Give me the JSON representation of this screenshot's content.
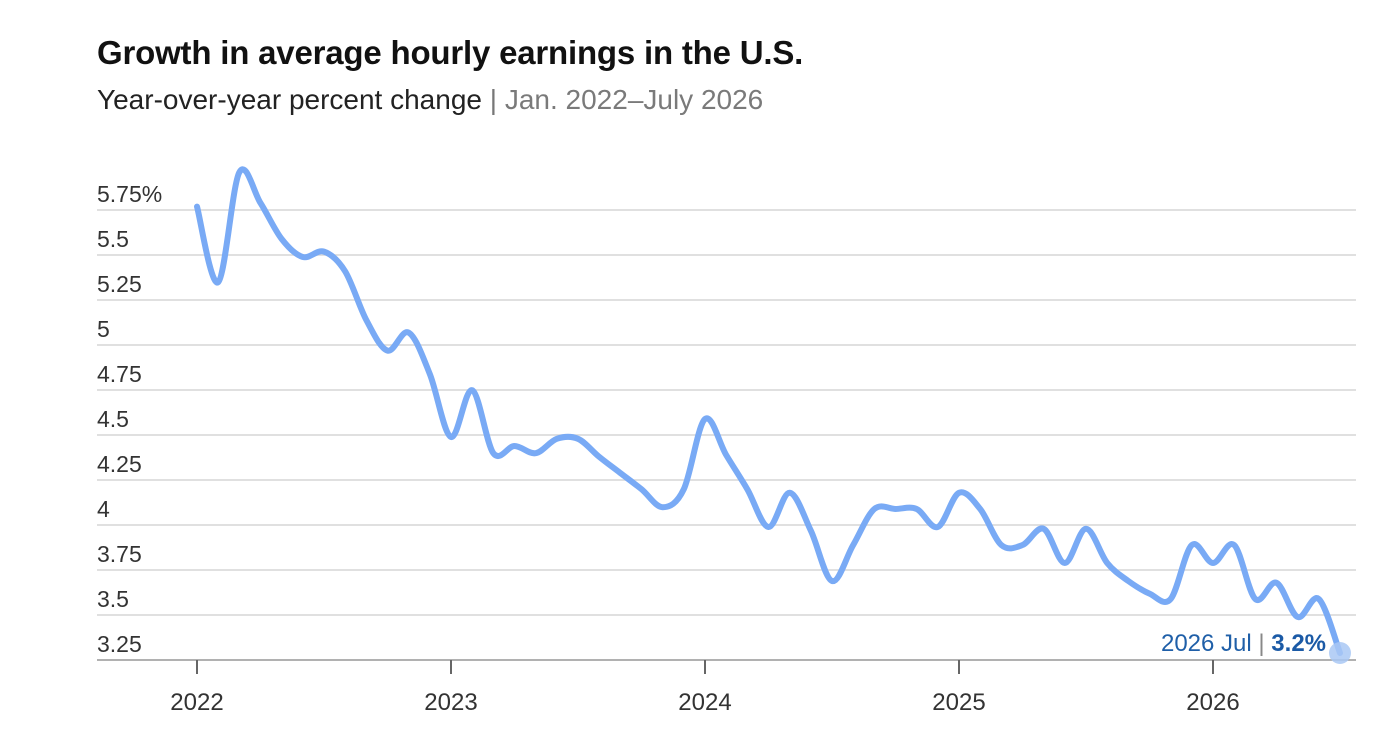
{
  "header": {
    "title": "Growth in average hourly earnings in the U.S.",
    "subtitle_main": "Year-over-year percent change",
    "subtitle_sep": "|",
    "subtitle_range": "Jan. 2022–July 2026"
  },
  "colors": {
    "line": "#79aaf5",
    "grid": "#d6d6d6",
    "axis": "#9e9e9e",
    "annotation": "#1f5fa8",
    "end_marker": "#a9c8f5"
  },
  "chart_data": {
    "type": "line",
    "title": "Growth in average hourly earnings in the U.S.",
    "subtitle": "Year-over-year percent change | Jan. 2022–July 2026",
    "xlabel": "",
    "ylabel": "",
    "y_tick_values": [
      3.25,
      3.5,
      3.75,
      4,
      4.25,
      4.5,
      4.75,
      5,
      5.25,
      5.5,
      5.75
    ],
    "y_tick_labels": [
      "3.25",
      "3.5",
      "3.75",
      "4",
      "4.25",
      "4.5",
      "4.75",
      "5",
      "5.25",
      "5.5",
      "5.75%"
    ],
    "x_tick_labels": [
      "2022",
      "2023",
      "2024",
      "2025",
      "2026"
    ],
    "ylim": [
      3.15,
      5.85
    ],
    "xlim": [
      "2022-01",
      "2026-07"
    ],
    "grid": true,
    "legend": "none",
    "series": [
      {
        "x": [
          "2022-01",
          "2022-02",
          "2022-03",
          "2022-04",
          "2022-05",
          "2022-06",
          "2022-07",
          "2022-08",
          "2022-09",
          "2022-10",
          "2022-11",
          "2022-12",
          "2023-01",
          "2023-02",
          "2023-03",
          "2023-04",
          "2023-05",
          "2023-06",
          "2023-07",
          "2023-08",
          "2023-09",
          "2023-10",
          "2023-11",
          "2023-12",
          "2024-01",
          "2024-02",
          "2024-03",
          "2024-04",
          "2024-05",
          "2024-06",
          "2024-07",
          "2024-08",
          "2024-09",
          "2024-10",
          "2024-11",
          "2024-12",
          "2025-01",
          "2025-02",
          "2025-03",
          "2025-04",
          "2025-05",
          "2025-06",
          "2025-07",
          "2025-08",
          "2025-09",
          "2025-10",
          "2025-11",
          "2025-12",
          "2026-01",
          "2026-02",
          "2026-03",
          "2026-04",
          "2026-05",
          "2026-06",
          "2026-07"
        ],
        "values": [
          5.68,
          5.26,
          5.87,
          5.7,
          5.5,
          5.4,
          5.43,
          5.32,
          5.05,
          4.88,
          4.98,
          4.75,
          4.4,
          4.66,
          4.31,
          4.35,
          4.31,
          4.39,
          4.39,
          4.29,
          4.2,
          4.11,
          4.01,
          4.11,
          4.5,
          4.3,
          4.11,
          3.9,
          4.09,
          3.88,
          3.6,
          3.8,
          4.0,
          4.0,
          4.0,
          3.9,
          4.09,
          4.0,
          3.8,
          3.8,
          3.89,
          3.7,
          3.89,
          3.7,
          3.6,
          3.53,
          3.5,
          3.8,
          3.7,
          3.8,
          3.5,
          3.59,
          3.4,
          3.5,
          3.2
        ]
      }
    ],
    "annotation": {
      "date_label": "2026 Jul",
      "separator": "|",
      "value_label": "3.2%"
    }
  }
}
